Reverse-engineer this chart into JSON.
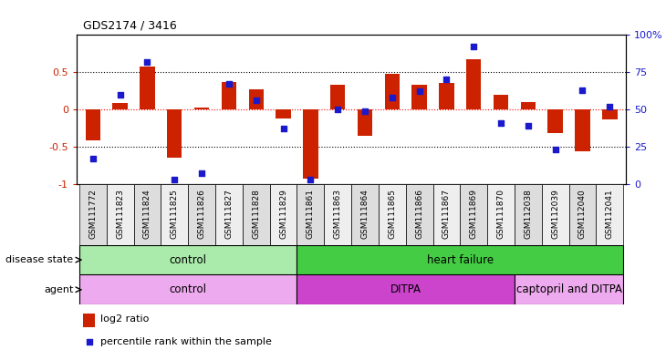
{
  "title": "GDS2174 / 3416",
  "samples": [
    "GSM111772",
    "GSM111823",
    "GSM111824",
    "GSM111825",
    "GSM111826",
    "GSM111827",
    "GSM111828",
    "GSM111829",
    "GSM111861",
    "GSM111863",
    "GSM111864",
    "GSM111865",
    "GSM111866",
    "GSM111867",
    "GSM111869",
    "GSM111870",
    "GSM112038",
    "GSM112039",
    "GSM112040",
    "GSM112041"
  ],
  "log2_ratio": [
    -0.42,
    0.08,
    0.58,
    -0.65,
    0.02,
    0.37,
    0.27,
    -0.12,
    -0.93,
    0.33,
    -0.35,
    0.48,
    0.33,
    0.35,
    0.68,
    0.2,
    0.1,
    -0.32,
    -0.56,
    -0.14
  ],
  "percentile": [
    0.17,
    0.6,
    0.82,
    0.03,
    0.07,
    0.67,
    0.56,
    0.37,
    0.03,
    0.5,
    0.49,
    0.58,
    0.62,
    0.7,
    0.92,
    0.41,
    0.39,
    0.23,
    0.63,
    0.52
  ],
  "bar_color": "#cc2200",
  "dot_color": "#1a1acc",
  "ylim_left": [
    -1.0,
    1.0
  ],
  "yticks_left": [
    -1,
    -0.5,
    0,
    0.5
  ],
  "ytick_labels_left": [
    "-1",
    "-0.5",
    "0",
    "0.5"
  ],
  "yticks_right": [
    0,
    25,
    50,
    75,
    100
  ],
  "ytick_labels_right": [
    "0",
    "25",
    "50",
    "75",
    "100%"
  ],
  "disease_state_groups": [
    {
      "label": "control",
      "start": 0,
      "end": 7,
      "color": "#aaeaaa"
    },
    {
      "label": "heart failure",
      "start": 8,
      "end": 19,
      "color": "#44cc44"
    }
  ],
  "agent_groups": [
    {
      "label": "control",
      "start": 0,
      "end": 7,
      "color": "#eeaaee"
    },
    {
      "label": "DITPA",
      "start": 8,
      "end": 15,
      "color": "#cc44cc"
    },
    {
      "label": "captopril and DITPA",
      "start": 16,
      "end": 19,
      "color": "#eeaaee"
    }
  ],
  "legend_bar_label": "log2 ratio",
  "legend_dot_label": "percentile rank within the sample",
  "bar_color_legend": "#cc2200",
  "dot_color_legend": "#1a1acc",
  "bar_width": 0.55
}
